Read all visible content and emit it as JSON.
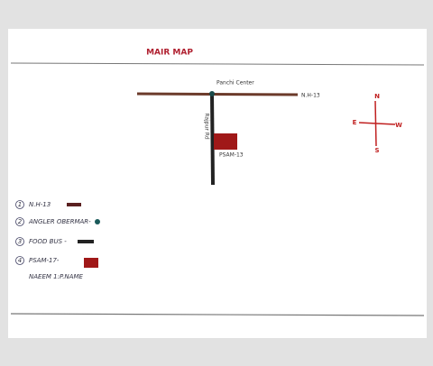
{
  "title": "MAIR MAP",
  "map": {
    "junction_label": "Panchi Center",
    "road_label": "N.H-13",
    "side_road_label": "Rajpur Rd",
    "marker_label": "PSAM-13"
  },
  "compass": {
    "north": "N",
    "east": "E",
    "west": "W",
    "south": "S"
  },
  "legend": {
    "items": [
      {
        "number": "1",
        "text": "N.H-13"
      },
      {
        "number": "2",
        "text": "ANGLER OBERMAR-"
      },
      {
        "number": "3",
        "text": "FOOD BUS -"
      },
      {
        "number": "4",
        "text": "PSAM-17-"
      }
    ],
    "note": "NAEEM 1:P.NAME"
  }
}
